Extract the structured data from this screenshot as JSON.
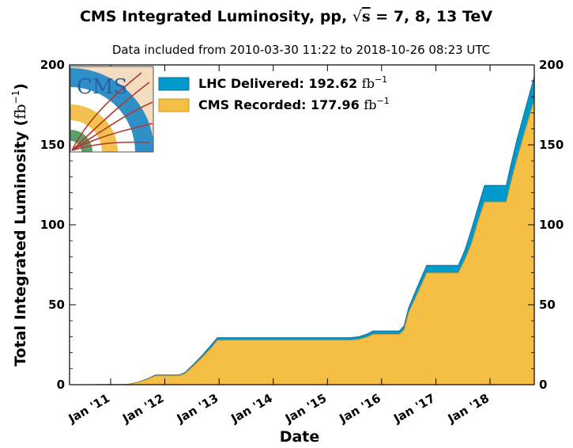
{
  "chart_data": {
    "type": "area",
    "title_prefix": "CMS Integrated Luminosity, pp,",
    "title_energy": "= 7, 8, 13 TeV",
    "title_sqrt": "√",
    "title_s": "s",
    "subtitle": "Data included from 2010-03-30 11:22 to 2018-10-26 08:23 UTC",
    "xlabel": "Date",
    "ylabel_text": "Total Integrated Luminosity (",
    "ylabel_unit": "fb",
    "ylabel_exp": "−1",
    "ylabel_close": ")",
    "unit_fb": "fb",
    "unit_exp": "−1",
    "ylim": [
      0,
      200
    ],
    "xlim": [
      "2010-03-30",
      "2018-10-26"
    ],
    "yticks": [
      0,
      50,
      100,
      150,
      200
    ],
    "xticks": [
      {
        "label": "Jan '11",
        "date": "2011-01-01"
      },
      {
        "label": "Jan '12",
        "date": "2012-01-01"
      },
      {
        "label": "Jan '13",
        "date": "2013-01-01"
      },
      {
        "label": "Jan '14",
        "date": "2014-01-01"
      },
      {
        "label": "Jan '15",
        "date": "2015-01-01"
      },
      {
        "label": "Jan '16",
        "date": "2016-01-01"
      },
      {
        "label": "Jan '17",
        "date": "2017-01-01"
      },
      {
        "label": "Jan '18",
        "date": "2018-01-01"
      }
    ],
    "legend_position": "top-left",
    "series": [
      {
        "name": "LHC Delivered: 192.62",
        "color": "#0099cc",
        "edge": "#1a6f95",
        "points": [
          [
            "2010-03-30",
            0
          ],
          [
            "2010-08-01",
            0.01
          ],
          [
            "2010-11-05",
            0.05
          ],
          [
            "2011-03-15",
            0.05
          ],
          [
            "2011-05-01",
            0.3
          ],
          [
            "2011-07-01",
            1.5
          ],
          [
            "2011-09-01",
            3.5
          ],
          [
            "2011-10-31",
            6.1
          ],
          [
            "2012-04-05",
            6.1
          ],
          [
            "2012-05-15",
            7.5
          ],
          [
            "2012-07-15",
            13
          ],
          [
            "2012-09-15",
            19
          ],
          [
            "2012-11-15",
            25.5
          ],
          [
            "2012-12-20",
            29.4
          ],
          [
            "2015-06-01",
            29.4
          ],
          [
            "2015-08-01",
            30
          ],
          [
            "2015-09-20",
            31.5
          ],
          [
            "2015-11-05",
            33.6
          ],
          [
            "2016-05-01",
            33.6
          ],
          [
            "2016-06-01",
            37
          ],
          [
            "2016-07-01",
            48
          ],
          [
            "2016-08-15",
            58
          ],
          [
            "2016-09-20",
            66
          ],
          [
            "2016-10-31",
            74.6
          ],
          [
            "2017-06-01",
            74.6
          ],
          [
            "2017-07-15",
            84
          ],
          [
            "2017-09-01",
            98
          ],
          [
            "2017-10-15",
            112
          ],
          [
            "2017-11-25",
            124.6
          ],
          [
            "2018-04-20",
            124.6
          ],
          [
            "2018-05-20",
            137
          ],
          [
            "2018-07-01",
            153
          ],
          [
            "2018-08-25",
            172
          ],
          [
            "2018-10-26",
            192.62
          ]
        ]
      },
      {
        "name": "CMS Recorded: 177.96",
        "color": "#f5bf45",
        "edge": "#c8962a",
        "points": [
          [
            "2010-03-30",
            0
          ],
          [
            "2010-08-01",
            0.01
          ],
          [
            "2010-11-05",
            0.04
          ],
          [
            "2011-03-15",
            0.04
          ],
          [
            "2011-05-01",
            0.28
          ],
          [
            "2011-07-01",
            1.4
          ],
          [
            "2011-09-01",
            3.2
          ],
          [
            "2011-10-31",
            5.6
          ],
          [
            "2012-04-05",
            5.6
          ],
          [
            "2012-05-15",
            6.9
          ],
          [
            "2012-07-15",
            12
          ],
          [
            "2012-09-15",
            17.6
          ],
          [
            "2012-11-15",
            23.6
          ],
          [
            "2012-12-20",
            27.8
          ],
          [
            "2015-06-01",
            27.8
          ],
          [
            "2015-08-01",
            28.3
          ],
          [
            "2015-09-20",
            29.6
          ],
          [
            "2015-11-05",
            31.5
          ],
          [
            "2016-05-01",
            31.5
          ],
          [
            "2016-06-01",
            34.5
          ],
          [
            "2016-07-01",
            45
          ],
          [
            "2016-08-15",
            54
          ],
          [
            "2016-09-20",
            61.5
          ],
          [
            "2016-10-31",
            69.9
          ],
          [
            "2017-06-01",
            69.9
          ],
          [
            "2017-07-15",
            78
          ],
          [
            "2017-09-01",
            89
          ],
          [
            "2017-10-15",
            103
          ],
          [
            "2017-11-25",
            114.3
          ],
          [
            "2018-04-20",
            114.3
          ],
          [
            "2018-05-20",
            126
          ],
          [
            "2018-07-01",
            141
          ],
          [
            "2018-08-25",
            159
          ],
          [
            "2018-10-26",
            177.96
          ]
        ]
      }
    ],
    "grid": false
  },
  "logo": {
    "text": "CMS",
    "colors": {
      "bg": "#f3dcc0",
      "ring_blue": "#2f8fc7",
      "ring_yellow": "#f2c14f",
      "ring_green": "#5aa06a",
      "tracks": "#b03a2e",
      "text": "#2a5fa8"
    }
  }
}
